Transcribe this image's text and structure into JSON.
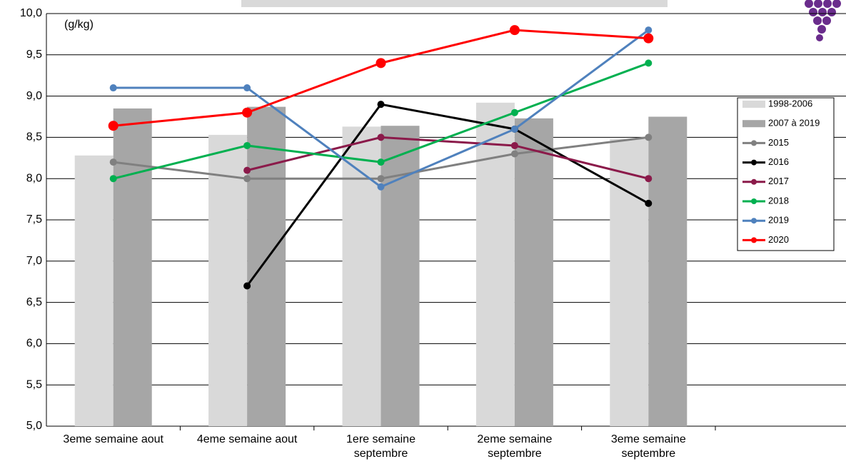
{
  "chart_data": {
    "type": "bar",
    "annotation": "(g/kg)",
    "categories": [
      "3eme semaine aout",
      "4eme semaine aout",
      "1ere semaine\nseptembre",
      "2eme semaine\nseptembre",
      "3eme semaine\nseptembre",
      null
    ],
    "series": [
      {
        "name": "1998-2006",
        "type": "bar",
        "color": "#d9d9d9",
        "values": [
          8.28,
          8.53,
          8.63,
          8.92,
          8.48,
          null
        ]
      },
      {
        "name": "2007 à 2019",
        "type": "bar",
        "color": "#a6a6a6",
        "values": [
          8.85,
          8.87,
          8.64,
          8.73,
          8.75,
          null
        ]
      },
      {
        "name": "2015",
        "type": "line",
        "color": "#808080",
        "values": [
          8.2,
          8.0,
          8.0,
          8.3,
          8.5,
          null
        ]
      },
      {
        "name": "2016",
        "type": "line",
        "color": "#000000",
        "values": [
          null,
          6.7,
          8.9,
          8.6,
          7.7,
          null
        ]
      },
      {
        "name": "2017",
        "type": "line",
        "color": "#8b1a4a",
        "values": [
          null,
          8.1,
          8.5,
          8.4,
          8.0,
          null
        ]
      },
      {
        "name": "2018",
        "type": "line",
        "color": "#00b050",
        "values": [
          8.0,
          8.4,
          8.2,
          8.8,
          9.4,
          null
        ]
      },
      {
        "name": "2019",
        "type": "line",
        "color": "#4f81bd",
        "values": [
          9.1,
          9.1,
          7.9,
          8.6,
          9.8,
          null
        ]
      },
      {
        "name": "2020",
        "type": "line",
        "color": "#ff0000",
        "values": [
          8.64,
          8.8,
          9.4,
          9.8,
          9.7,
          null
        ]
      }
    ],
    "ylim": [
      5,
      10
    ],
    "yticks": [
      {
        "value": 5,
        "label": "5,0"
      },
      {
        "value": 5.5,
        "label": "5,5"
      },
      {
        "value": 6,
        "label": "6,0"
      },
      {
        "value": 6.5,
        "label": "6,5"
      },
      {
        "value": 7,
        "label": "7,0"
      },
      {
        "value": 7.5,
        "label": "7,5"
      },
      {
        "value": 8,
        "label": "8,0"
      },
      {
        "value": 8.5,
        "label": "8,5"
      },
      {
        "value": 9,
        "label": "9,0"
      },
      {
        "value": 9.5,
        "label": "9,5"
      },
      {
        "value": 10,
        "label": "10,0"
      }
    ],
    "grid": true,
    "legend": "right"
  }
}
